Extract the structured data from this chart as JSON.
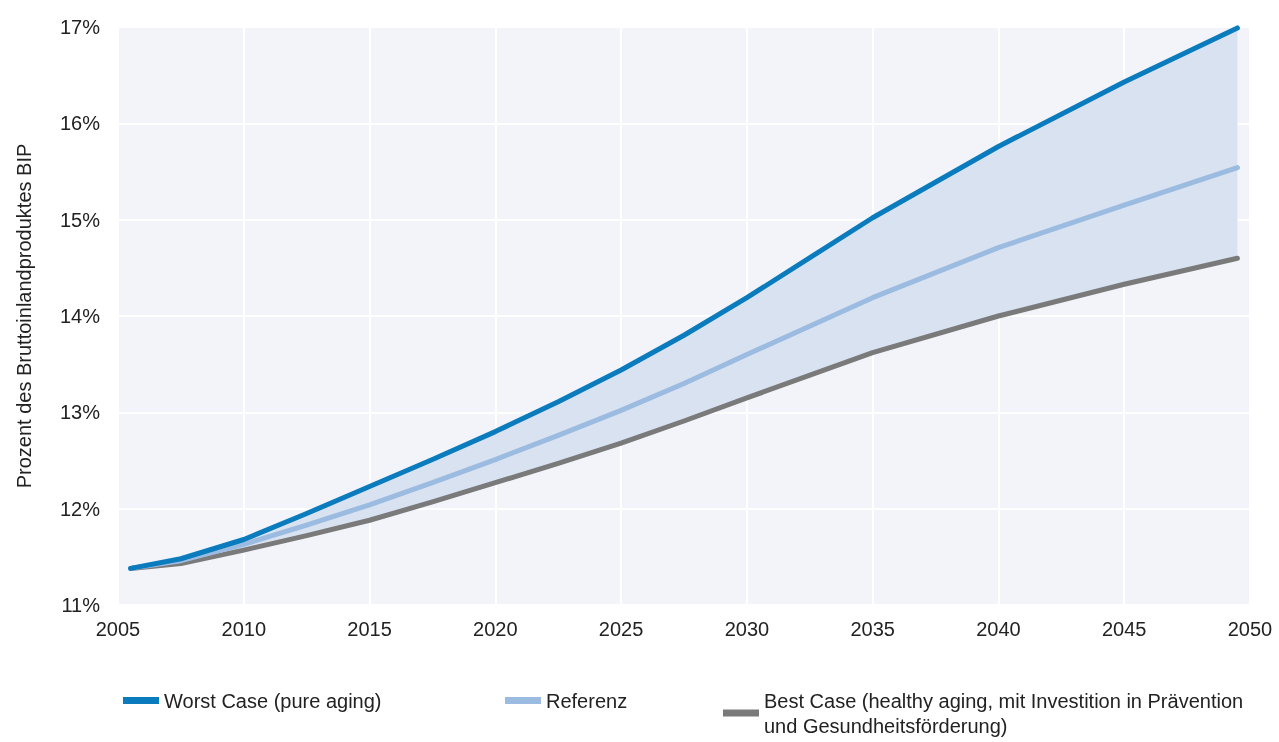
{
  "chart_data": {
    "type": "line",
    "ylabel": "Prozent des Bruttoinlandproduktes BIP",
    "x": [
      2005.5,
      2007.5,
      2010,
      2012.5,
      2015,
      2017.5,
      2020,
      2022.5,
      2025,
      2027.5,
      2030,
      2035,
      2040,
      2045,
      2049.5
    ],
    "series": [
      {
        "name": "Worst Case (pure aging)",
        "color": "#0a7bbd",
        "values": [
          11.38,
          11.48,
          11.68,
          11.95,
          12.23,
          12.51,
          12.8,
          13.11,
          13.44,
          13.8,
          14.19,
          15.02,
          15.76,
          16.43,
          16.99
        ]
      },
      {
        "name": "Referenz",
        "color": "#9bbbe0",
        "values": [
          11.38,
          11.46,
          11.63,
          11.83,
          12.04,
          12.27,
          12.51,
          12.76,
          13.02,
          13.3,
          13.6,
          14.19,
          14.71,
          15.15,
          15.54
        ],
        "lower": [
          11.38,
          11.43,
          11.57,
          11.72,
          11.88,
          12.07,
          12.27,
          12.47,
          12.68,
          12.91,
          13.15,
          13.62,
          14.0,
          14.33,
          14.6
        ],
        "upper": [
          11.38,
          11.48,
          11.68,
          11.95,
          12.23,
          12.51,
          12.8,
          13.11,
          13.44,
          13.8,
          14.19,
          15.02,
          15.76,
          16.43,
          16.99
        ]
      },
      {
        "name": "Best Case (healthy aging, mit Investition in Prävention und Gesundheitsförderung)",
        "color": "#7a7a7a",
        "values": [
          11.38,
          11.43,
          11.57,
          11.72,
          11.88,
          12.07,
          12.27,
          12.47,
          12.68,
          12.91,
          13.15,
          13.62,
          14.0,
          14.33,
          14.6
        ]
      }
    ],
    "xlim": [
      2005,
      2050
    ],
    "xticks": [
      2005,
      2010,
      2015,
      2020,
      2025,
      2030,
      2035,
      2040,
      2045,
      2050
    ],
    "ylim": [
      11,
      17
    ],
    "yticks": [
      {
        "value": 11,
        "label": "11%"
      },
      {
        "value": 12,
        "label": "12%"
      },
      {
        "value": 13,
        "label": "13%"
      },
      {
        "value": 14,
        "label": "14%"
      },
      {
        "value": 15,
        "label": "15%"
      },
      {
        "value": 16,
        "label": "16%"
      },
      {
        "value": 17,
        "label": "17%"
      }
    ],
    "grid": true,
    "legend": "bottom",
    "marker": "none",
    "line_style": "solid"
  }
}
